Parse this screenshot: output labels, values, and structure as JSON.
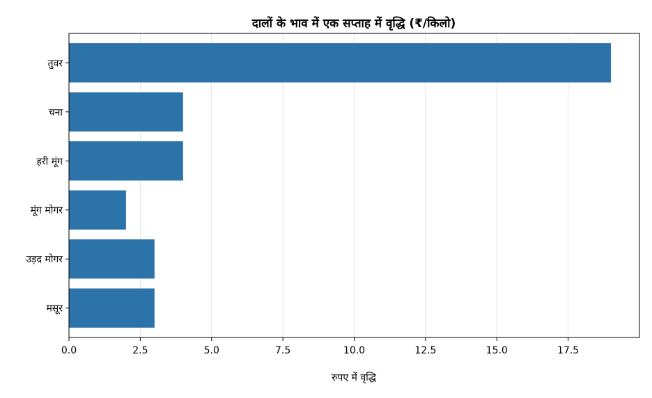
{
  "chart_data": {
    "type": "bar",
    "orientation": "horizontal",
    "title": "दालों के भाव में एक सप्ताह में वृद्धि (₹/किलो)",
    "xlabel": "रुपए में वृद्धि",
    "ylabel": "",
    "categories": [
      "तुवर",
      "चना",
      "हरी मूंग",
      "मूंग मोगर",
      "उड़द मोगर",
      "मसूर"
    ],
    "values": [
      19,
      4,
      4,
      2,
      3,
      3
    ],
    "xlim": [
      0,
      20
    ],
    "xticks": [
      "0.0",
      "2.5",
      "5.0",
      "7.5",
      "10.0",
      "12.5",
      "15.0",
      "17.5"
    ],
    "grid": "vertical",
    "bar_color": "#2b73a8",
    "legend": "none"
  }
}
